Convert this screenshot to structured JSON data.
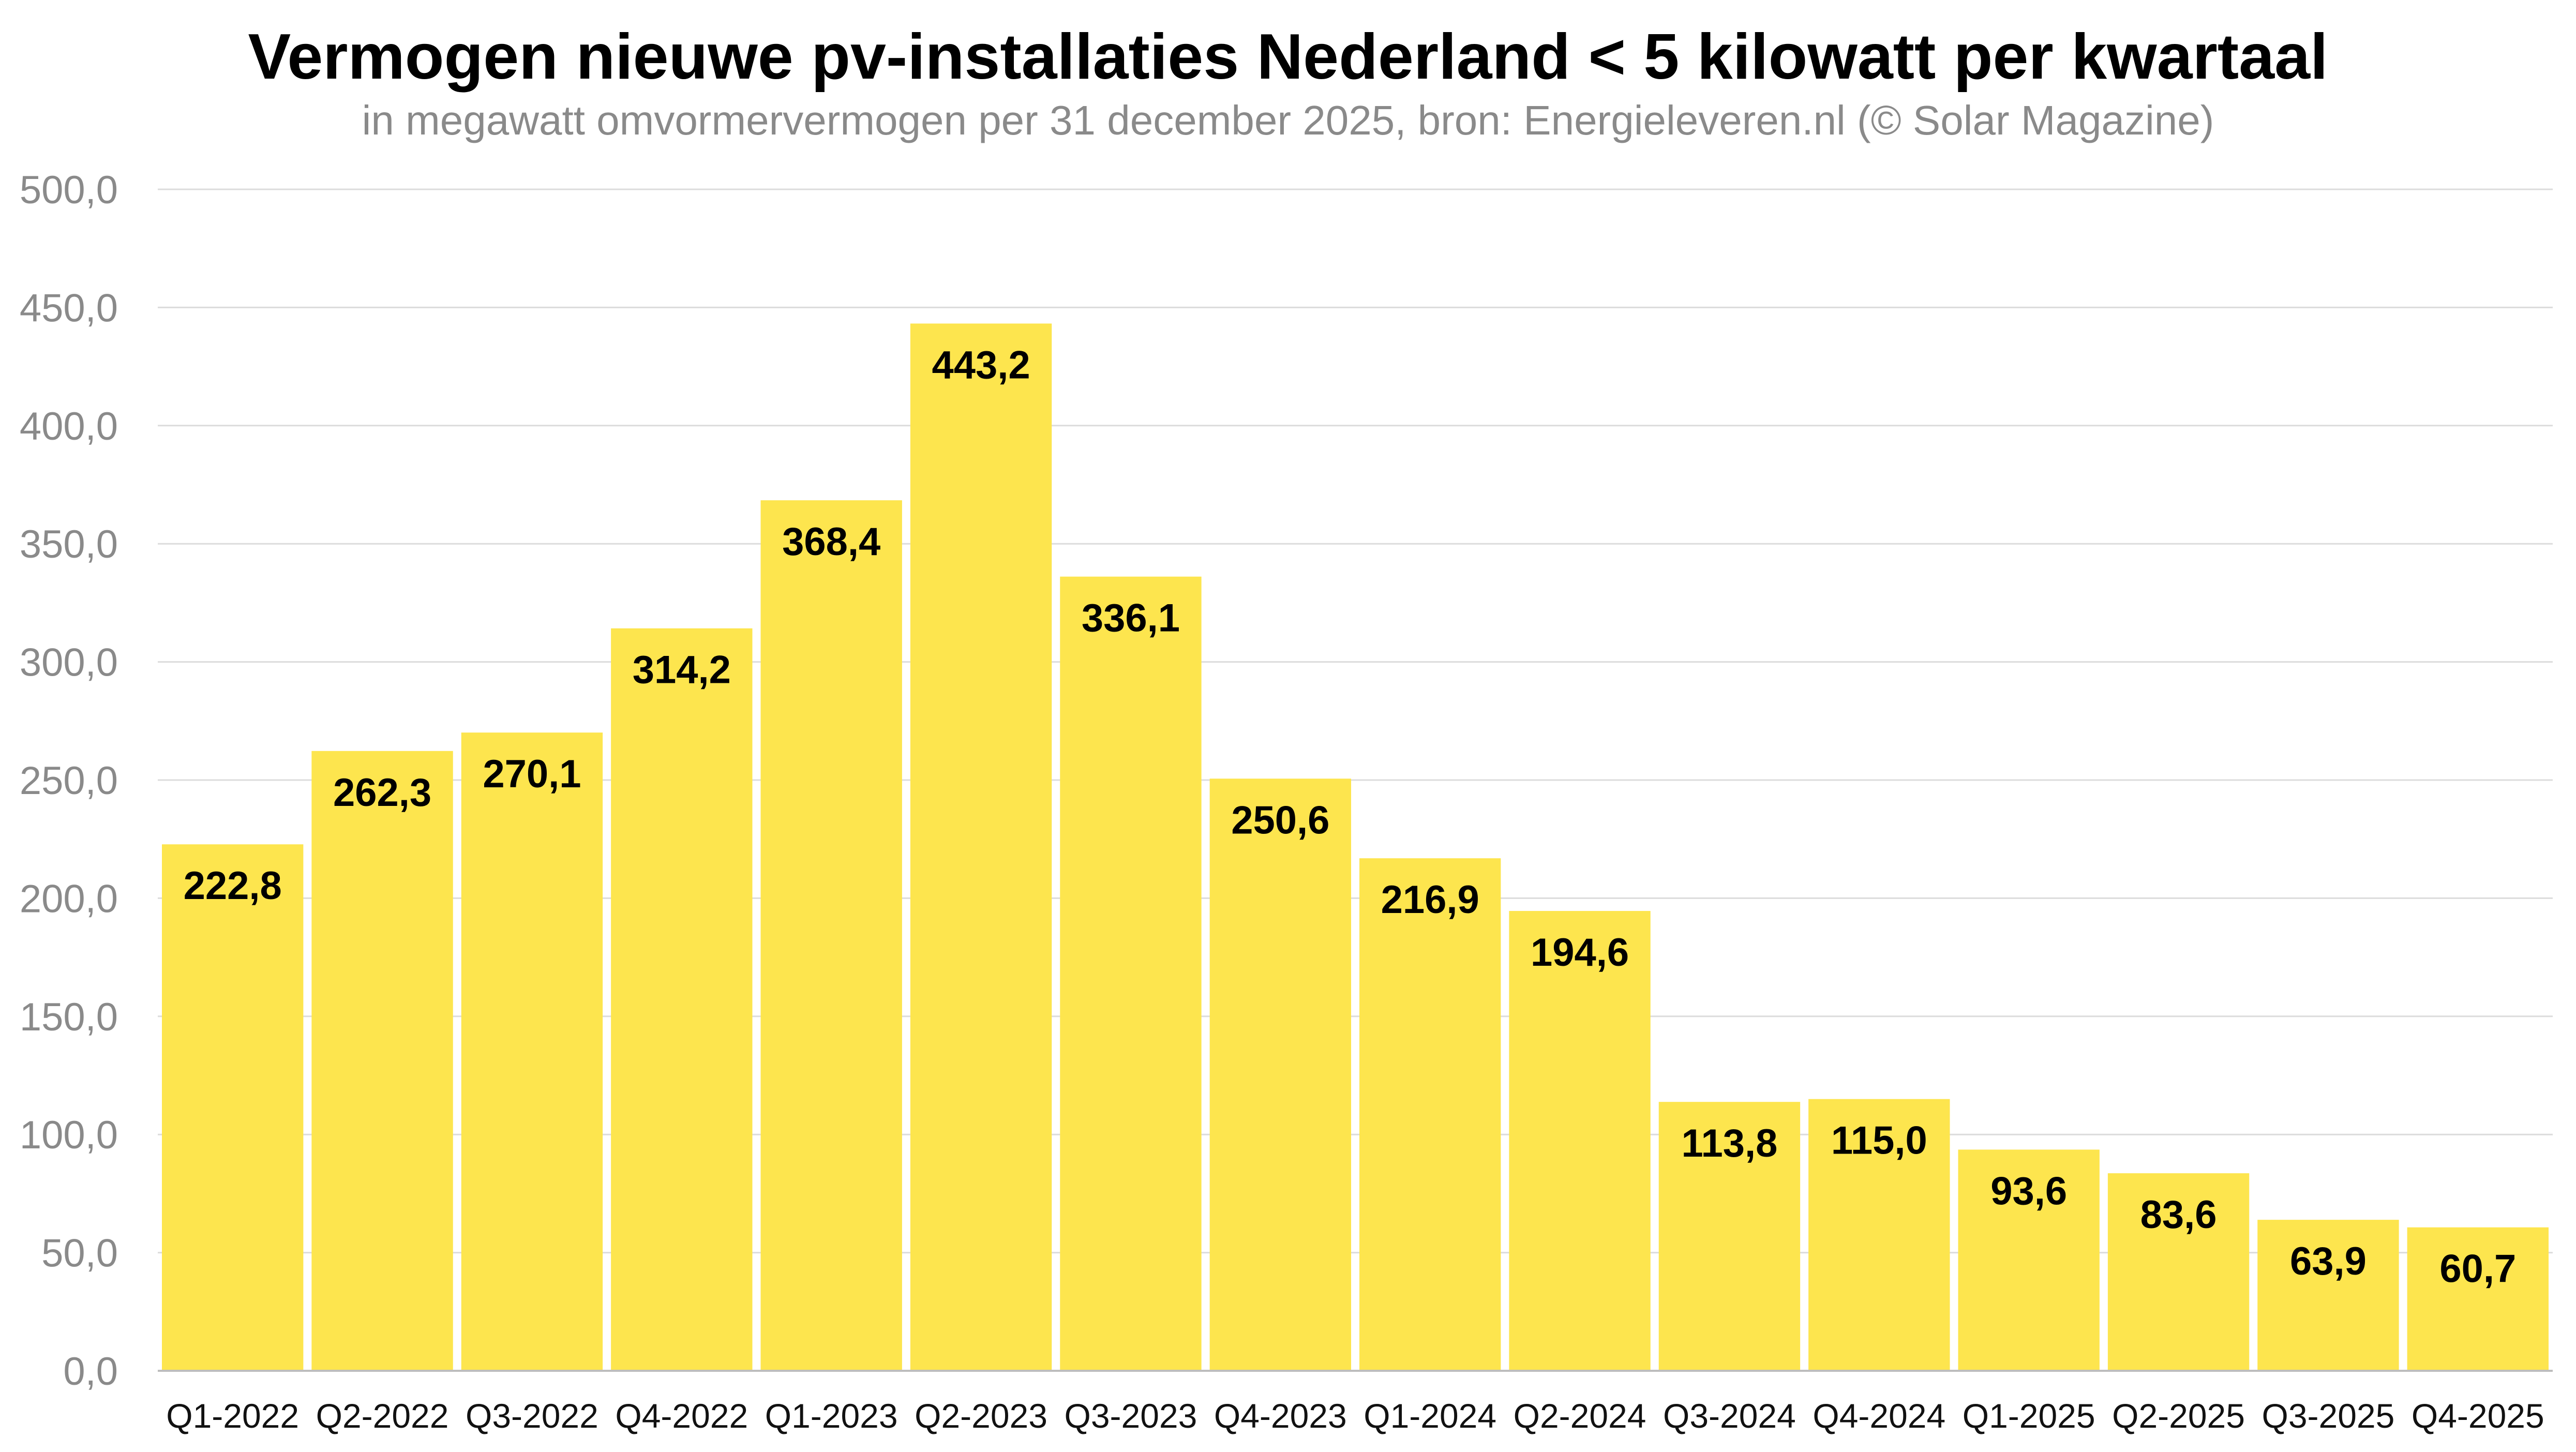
{
  "chart_data": {
    "type": "bar",
    "title": "Vermogen nieuwe pv-installaties Nederland < 5 kilowatt per kwartaal",
    "subtitle": "in megawatt omvormervermogen per 31 december 2025, bron: Energieleveren.nl (© Solar Magazine)",
    "xlabel": "",
    "ylabel": "",
    "ylim": [
      0,
      500
    ],
    "yticks": [
      0,
      50,
      100,
      150,
      200,
      250,
      300,
      350,
      400,
      450,
      500
    ],
    "ytick_labels": [
      "0,0",
      "50,0",
      "100,0",
      "150,0",
      "200,0",
      "250,0",
      "300,0",
      "350,0",
      "400,0",
      "450,0",
      "500,0"
    ],
    "grid": true,
    "legend": "none",
    "categories": [
      "Q1-2022",
      "Q2-2022",
      "Q3-2022",
      "Q4-2022",
      "Q1-2023",
      "Q2-2023",
      "Q3-2023",
      "Q4-2023",
      "Q1-2024",
      "Q2-2024",
      "Q3-2024",
      "Q4-2024",
      "Q1-2025",
      "Q2-2025",
      "Q3-2025",
      "Q4-2025"
    ],
    "values": [
      222.8,
      262.3,
      270.1,
      314.2,
      368.4,
      443.2,
      336.1,
      250.6,
      216.9,
      194.6,
      113.8,
      115.0,
      93.6,
      83.6,
      63.9,
      60.7
    ],
    "value_labels": [
      "222,8",
      "262,3",
      "270,1",
      "314,2",
      "368,4",
      "443,2",
      "336,1",
      "250,6",
      "216,9",
      "194,6",
      "113,8",
      "115,0",
      "93,6",
      "83,6",
      "63,9",
      "60,7"
    ],
    "bar_color": "#FDE54E"
  }
}
